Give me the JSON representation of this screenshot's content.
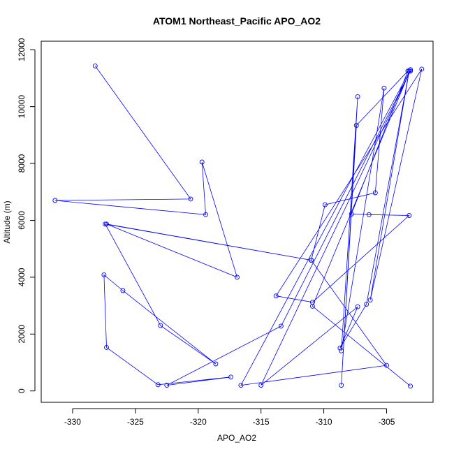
{
  "chart_data": {
    "type": "scatter",
    "title": "ATOM1 Northeast_Pacific APO_AO2",
    "xlabel": "APO_AO2",
    "ylabel": "Altitude (m)",
    "xlim": [
      -332.5,
      -301.3
    ],
    "ylim": [
      -400,
      12300
    ],
    "xticks": [
      -330,
      -325,
      -320,
      -315,
      -310,
      -305
    ],
    "yticks": [
      0,
      2000,
      4000,
      6000,
      8000,
      10000,
      12000
    ],
    "grid": false,
    "connect_points": true,
    "colors": {
      "series": "#0000ff",
      "axis": "#000000",
      "background": "#ffffff"
    },
    "series": [
      {
        "x": [
          -328.2,
          -320.6,
          -331.4,
          -319.4,
          -319.7,
          -316.9,
          -327.3,
          -311.0,
          -309.9,
          -305.9,
          -305.2,
          -308.6,
          -307.3,
          -308.6,
          -307.4,
          -303.3,
          -307.8,
          -306.4,
          -303.2,
          -310.9,
          -313.8,
          -302.2,
          -306.3,
          -303.2,
          -306.6,
          -308.7,
          -307.3,
          -315.0,
          -303.1,
          -313.4,
          -322.5,
          -317.4,
          -323.2,
          -327.3,
          -327.5,
          -326.0,
          -318.6,
          -323.0,
          -327.4,
          -311.0,
          -305.0,
          -316.6,
          -303.1,
          -310.9,
          -303.1
        ],
        "y": [
          11430,
          6750,
          6700,
          6200,
          8050,
          4000,
          5870,
          4600,
          6550,
          6970,
          10650,
          1410,
          10350,
          200,
          9340,
          11250,
          6220,
          6200,
          6170,
          3120,
          3340,
          11320,
          3200,
          11250,
          3050,
          1510,
          2960,
          200,
          11250,
          2280,
          200,
          490,
          220,
          1530,
          4080,
          3530,
          950,
          2300,
          5870,
          4600,
          900,
          200,
          11300,
          2980,
          170
        ]
      }
    ]
  }
}
